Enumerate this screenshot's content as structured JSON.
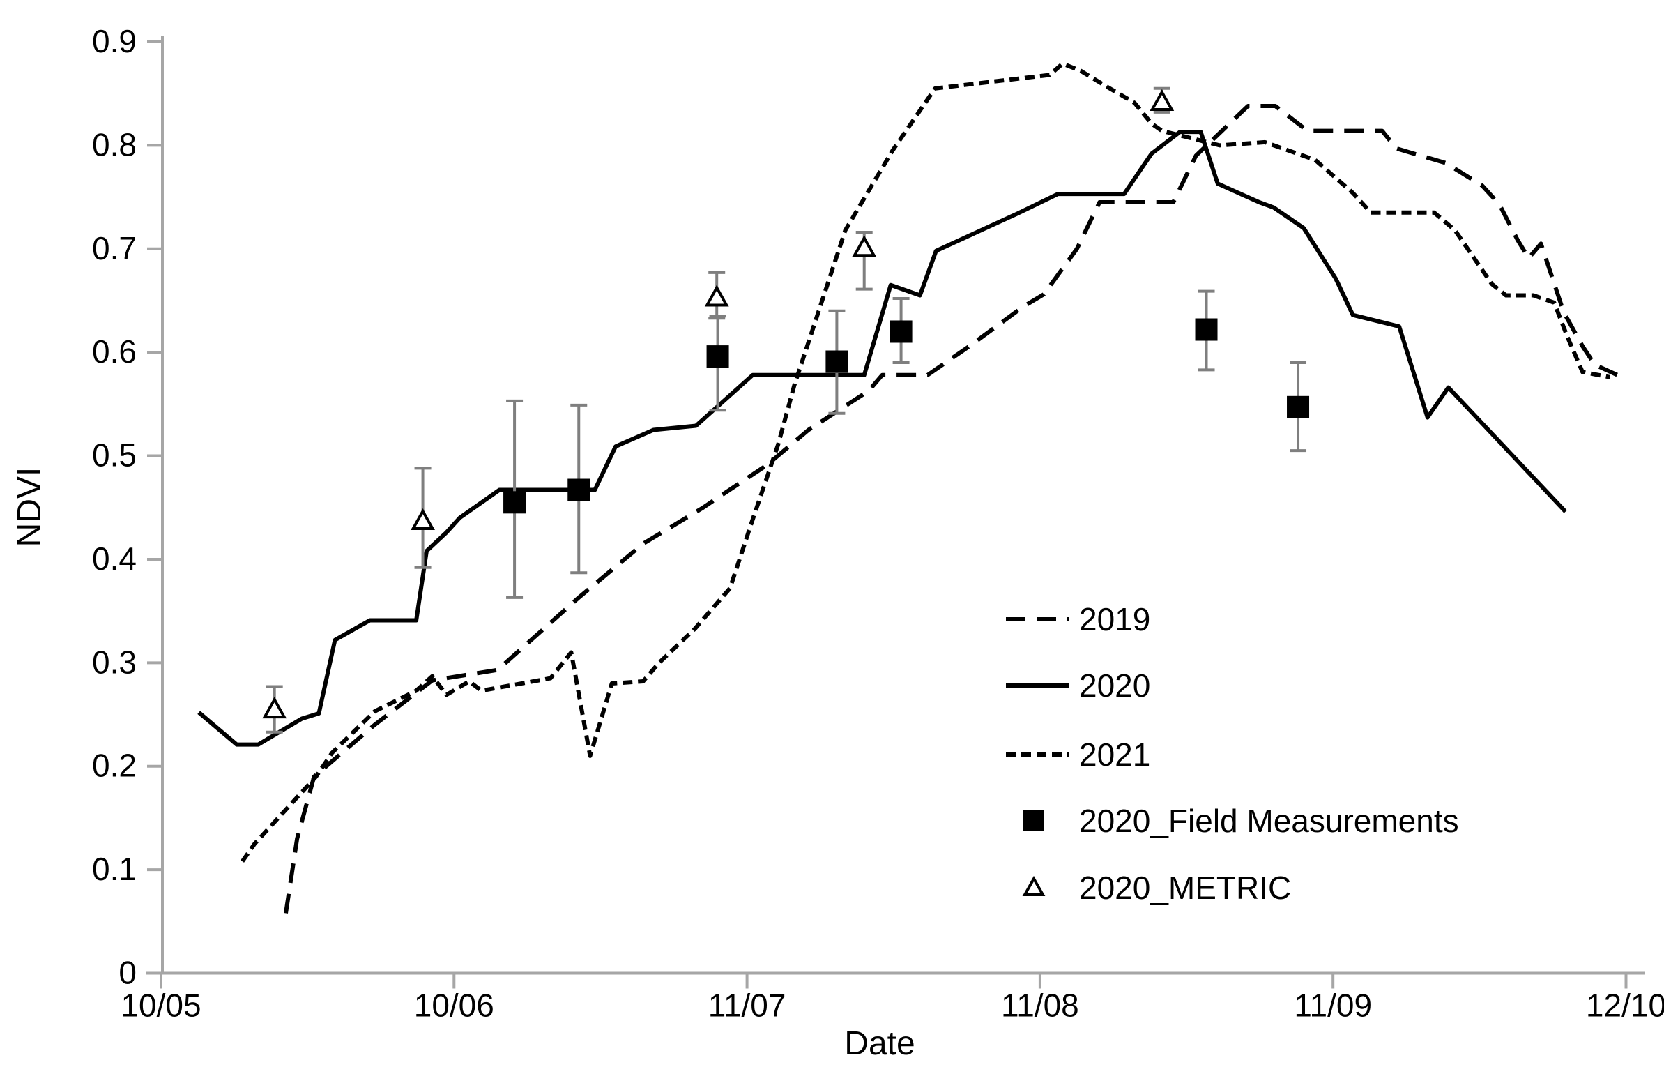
{
  "chart_data": {
    "type": "line",
    "xlabel": "Date",
    "ylabel": "NDVI",
    "ylim": [
      0,
      0.9
    ],
    "ytick_step": 0.1,
    "ytick_labels": [
      "0",
      "0.1",
      "0.2",
      "0.3",
      "0.4",
      "0.5",
      "0.6",
      "0.7",
      "0.8",
      "0.9"
    ],
    "x_unit": "days_after_first_tick",
    "xlim_days": [
      -2,
      158
    ],
    "xticks": {
      "days": [
        0,
        31,
        62,
        93,
        124,
        155
      ],
      "labels": [
        "10/05",
        "10/06",
        "11/07",
        "11/08",
        "11/09",
        "12/10"
      ]
    },
    "grid": false,
    "legend_position": "inside-lower-right",
    "colors": {
      "line": "#000000",
      "error_bar": "#7f7f7f",
      "axis": "#a6a6a6",
      "text": "#000000",
      "marker_fill": "#000000",
      "triangle_fill": "#ffffff"
    },
    "series": [
      {
        "name": "2019",
        "style": "long-dash",
        "points": [
          [
            13.2,
            0.058
          ],
          [
            14.4,
            0.13
          ],
          [
            16.2,
            0.19
          ],
          [
            22.6,
            0.24
          ],
          [
            28.7,
            0.283
          ],
          [
            35.6,
            0.293
          ],
          [
            44.2,
            0.363
          ],
          [
            51.0,
            0.415
          ],
          [
            57.2,
            0.449
          ],
          [
            64.1,
            0.491
          ],
          [
            68.5,
            0.525
          ],
          [
            74.9,
            0.563
          ],
          [
            76.3,
            0.578
          ],
          [
            81.1,
            0.578
          ],
          [
            85.7,
            0.607
          ],
          [
            91.2,
            0.644
          ],
          [
            93.4,
            0.656
          ],
          [
            96.9,
            0.7
          ],
          [
            99.3,
            0.745
          ],
          [
            107.1,
            0.745
          ],
          [
            109.5,
            0.79
          ],
          [
            115.0,
            0.838
          ],
          [
            117.9,
            0.838
          ],
          [
            121.3,
            0.814
          ],
          [
            129.2,
            0.814
          ],
          [
            130.7,
            0.797
          ],
          [
            135.9,
            0.783
          ],
          [
            139.8,
            0.761
          ],
          [
            141.6,
            0.743
          ],
          [
            143.5,
            0.709
          ],
          [
            144.7,
            0.691
          ],
          [
            146.0,
            0.705
          ],
          [
            148.4,
            0.639
          ],
          [
            150.4,
            0.606
          ],
          [
            151.7,
            0.588
          ],
          [
            154.1,
            0.578
          ]
        ]
      },
      {
        "name": "2020",
        "style": "solid",
        "points": [
          [
            4.0,
            0.252
          ],
          [
            8.0,
            0.221
          ],
          [
            10.3,
            0.221
          ],
          [
            14.9,
            0.246
          ],
          [
            16.7,
            0.251
          ],
          [
            18.4,
            0.322
          ],
          [
            22.1,
            0.341
          ],
          [
            27.0,
            0.341
          ],
          [
            28.1,
            0.408
          ],
          [
            30.2,
            0.426
          ],
          [
            31.6,
            0.44
          ],
          [
            35.8,
            0.467
          ],
          [
            45.9,
            0.467
          ],
          [
            48.1,
            0.509
          ],
          [
            52.1,
            0.525
          ],
          [
            56.6,
            0.529
          ],
          [
            62.6,
            0.578
          ],
          [
            74.4,
            0.578
          ],
          [
            77.2,
            0.665
          ],
          [
            80.3,
            0.655
          ],
          [
            82.0,
            0.698
          ],
          [
            90.6,
            0.734
          ],
          [
            94.9,
            0.753
          ],
          [
            101.9,
            0.753
          ],
          [
            104.8,
            0.792
          ],
          [
            107.8,
            0.813
          ],
          [
            110.0,
            0.813
          ],
          [
            111.8,
            0.763
          ],
          [
            116.2,
            0.745
          ],
          [
            117.7,
            0.74
          ],
          [
            120.9,
            0.72
          ],
          [
            124.3,
            0.671
          ],
          [
            126.1,
            0.636
          ],
          [
            131.0,
            0.625
          ],
          [
            134.0,
            0.537
          ],
          [
            136.2,
            0.566
          ],
          [
            148.6,
            0.446
          ]
        ]
      },
      {
        "name": "2021",
        "style": "short-dash",
        "points": [
          [
            8.6,
            0.108
          ],
          [
            9.9,
            0.125
          ],
          [
            16.4,
            0.19
          ],
          [
            18.1,
            0.213
          ],
          [
            22.6,
            0.253
          ],
          [
            27.0,
            0.273
          ],
          [
            28.7,
            0.287
          ],
          [
            30.2,
            0.269
          ],
          [
            32.6,
            0.282
          ],
          [
            33.9,
            0.273
          ],
          [
            41.2,
            0.285
          ],
          [
            43.4,
            0.31
          ],
          [
            45.4,
            0.21
          ],
          [
            47.7,
            0.28
          ],
          [
            51.0,
            0.282
          ],
          [
            52.7,
            0.3
          ],
          [
            56.5,
            0.333
          ],
          [
            60.2,
            0.372
          ],
          [
            62.4,
            0.433
          ],
          [
            65.3,
            0.511
          ],
          [
            67.0,
            0.568
          ],
          [
            72.4,
            0.718
          ],
          [
            77.4,
            0.795
          ],
          [
            81.9,
            0.855
          ],
          [
            88.4,
            0.862
          ],
          [
            94.0,
            0.868
          ],
          [
            95.4,
            0.879
          ],
          [
            97.3,
            0.872
          ],
          [
            100.2,
            0.856
          ],
          [
            103.0,
            0.841
          ],
          [
            104.8,
            0.821
          ],
          [
            105.9,
            0.814
          ],
          [
            112.0,
            0.8
          ],
          [
            116.8,
            0.803
          ],
          [
            122.1,
            0.786
          ],
          [
            126.1,
            0.754
          ],
          [
            128.0,
            0.735
          ],
          [
            134.7,
            0.735
          ],
          [
            136.9,
            0.718
          ],
          [
            140.8,
            0.666
          ],
          [
            142.3,
            0.655
          ],
          [
            145.2,
            0.655
          ],
          [
            147.4,
            0.648
          ],
          [
            148.8,
            0.615
          ],
          [
            150.4,
            0.581
          ],
          [
            153.3,
            0.576
          ]
        ]
      }
    ],
    "scatter_series": [
      {
        "name": "2020_Field Measurements",
        "marker": "filled-square",
        "points": [
          {
            "day": 37.4,
            "value": 0.455,
            "err_up": 0.098,
            "err_down": 0.092
          },
          {
            "day": 44.2,
            "value": 0.467,
            "err_up": 0.082,
            "err_down": 0.08
          },
          {
            "day": 58.9,
            "value": 0.596,
            "err_up": 0.039,
            "err_down": 0.052
          },
          {
            "day": 71.5,
            "value": 0.591,
            "err_up": 0.049,
            "err_down": 0.05
          },
          {
            "day": 78.3,
            "value": 0.62,
            "err_up": 0.032,
            "err_down": 0.03
          },
          {
            "day": 110.6,
            "value": 0.622,
            "err_up": 0.037,
            "err_down": 0.039
          },
          {
            "day": 120.3,
            "value": 0.547,
            "err_up": 0.043,
            "err_down": 0.042
          }
        ]
      },
      {
        "name": "2020_METRIC",
        "marker": "open-triangle",
        "points": [
          {
            "day": 12.0,
            "value": 0.255,
            "err_up": 0.022,
            "err_down": 0.022
          },
          {
            "day": 27.7,
            "value": 0.437,
            "err_up": 0.051,
            "err_down": 0.045
          },
          {
            "day": 58.8,
            "value": 0.653,
            "err_up": 0.024,
            "err_down": 0.02
          },
          {
            "day": 74.4,
            "value": 0.701,
            "err_up": 0.015,
            "err_down": 0.04
          },
          {
            "day": 105.9,
            "value": 0.842,
            "err_up": 0.013,
            "err_down": 0.01
          }
        ]
      }
    ],
    "legend": [
      {
        "label": "2019",
        "swatch": "long-dash-line"
      },
      {
        "label": "2020",
        "swatch": "solid-line"
      },
      {
        "label": "2021",
        "swatch": "short-dash-line"
      },
      {
        "label": "2020_Field Measurements",
        "swatch": "filled-square"
      },
      {
        "label": "2020_METRIC",
        "swatch": "open-triangle"
      }
    ]
  }
}
